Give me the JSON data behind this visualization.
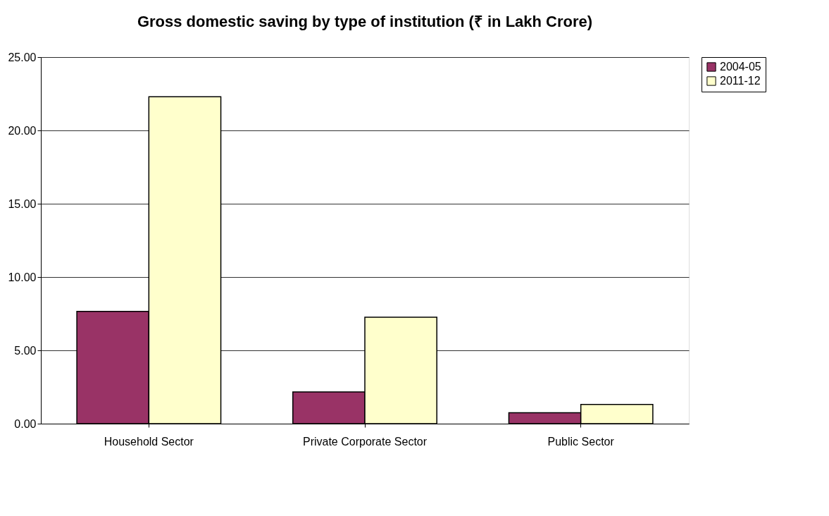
{
  "chart_data": {
    "type": "bar",
    "title": "Gross domestic saving by type of  institution (₹ in Lakh Crore)",
    "categories": [
      "Household Sector",
      "Private Corporate Sector",
      "Public Sector"
    ],
    "series": [
      {
        "name": "2004-05",
        "color": "#993366",
        "values": [
          7.66,
          2.16,
          0.75
        ]
      },
      {
        "name": "2011-12",
        "color": "#ffffcc",
        "values": [
          22.3,
          7.26,
          1.31
        ]
      }
    ],
    "ylim": [
      0,
      25
    ],
    "yticks": [
      {
        "value": 0,
        "label": "0.00"
      },
      {
        "value": 5,
        "label": "5.00"
      },
      {
        "value": 10,
        "label": "10.00"
      },
      {
        "value": 15,
        "label": "15.00"
      },
      {
        "value": 20,
        "label": "20.00"
      },
      {
        "value": 25,
        "label": "25.00"
      }
    ],
    "grid": "y",
    "legend": "right"
  }
}
